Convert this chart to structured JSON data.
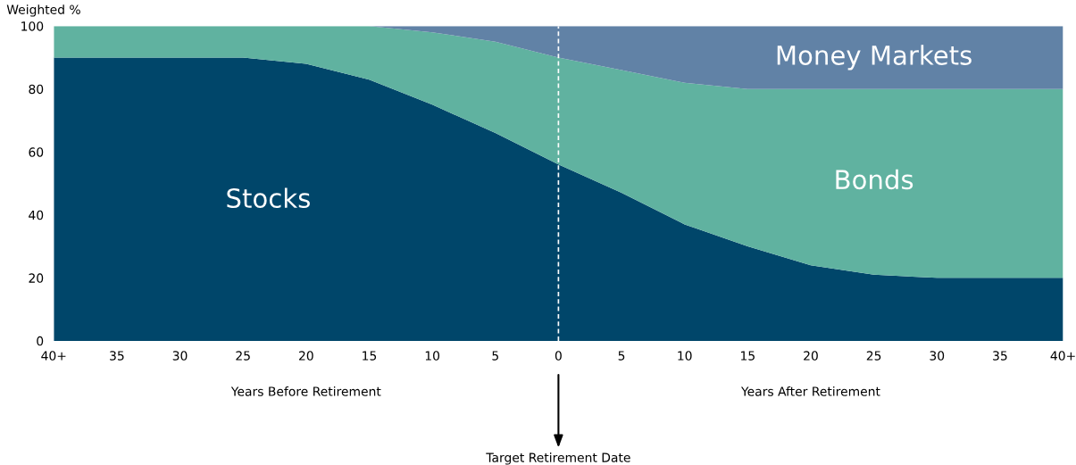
{
  "chart_data": {
    "type": "area",
    "stacked": true,
    "ylabel": "Weighted %",
    "categories": [
      "40+",
      "35",
      "30",
      "25",
      "20",
      "15",
      "10",
      "5",
      "0",
      "5",
      "10",
      "15",
      "20",
      "25",
      "30",
      "35",
      "40+"
    ],
    "series": [
      {
        "name": "Stocks",
        "color": "#00466a",
        "values": [
          90,
          90,
          90,
          90,
          88,
          83,
          75,
          66,
          56,
          47,
          37,
          30,
          24,
          21,
          20,
          20,
          20
        ]
      },
      {
        "name": "Bonds",
        "color": "#60b2a0",
        "values": [
          10,
          10,
          10,
          10,
          12,
          17,
          23,
          29,
          34,
          39,
          45,
          50,
          56,
          59,
          60,
          60,
          60
        ]
      },
      {
        "name": "Money Markets",
        "color": "#6182a6",
        "values": [
          0,
          0,
          0,
          0,
          0,
          0,
          2,
          5,
          10,
          14,
          18,
          20,
          20,
          20,
          20,
          20,
          20
        ]
      }
    ],
    "ylim": [
      0,
      100
    ],
    "yticks": [
      0,
      20,
      40,
      60,
      80,
      100
    ],
    "grid": false,
    "legend": false,
    "ref_lines": [
      {
        "axis": "x",
        "value": "0",
        "color": "#ffffff",
        "line_style": "dashed"
      }
    ],
    "annotations": [
      "Years Before Retirement",
      "Years After Retirement",
      "Target Retirement Date"
    ]
  }
}
